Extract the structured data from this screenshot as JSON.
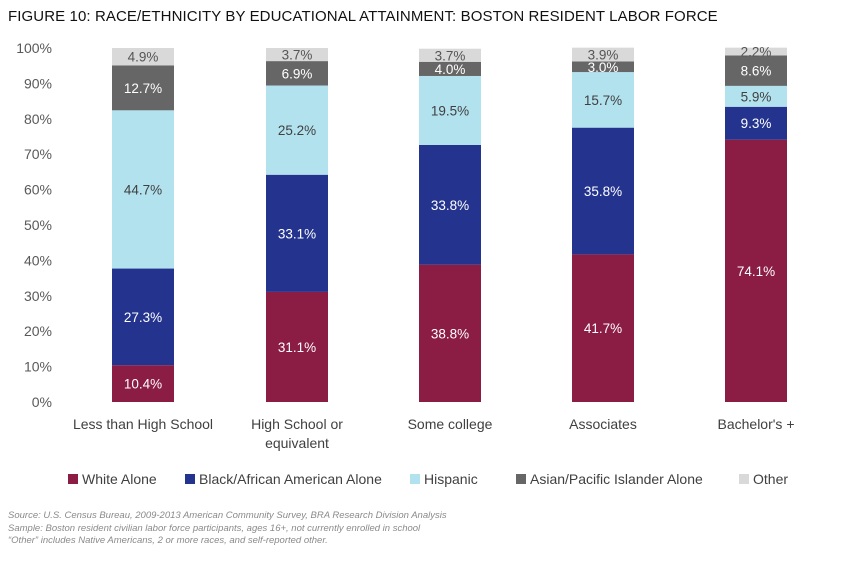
{
  "title": "FIGURE 10: RACE/ETHNICITY BY EDUCATIONAL ATTAINMENT: BOSTON RESIDENT LABOR FORCE",
  "chart_data": {
    "type": "bar",
    "stacked": true,
    "categories": [
      [
        "Less than High School"
      ],
      [
        "High School or",
        "equivalent"
      ],
      [
        "Some college"
      ],
      [
        "Associates"
      ],
      [
        "Bachelor's +"
      ]
    ],
    "series": [
      {
        "name": "White Alone",
        "color": "#8b1c44",
        "label_color": "#ffffff",
        "values": [
          10.4,
          31.1,
          38.8,
          41.7,
          74.1
        ],
        "labels": [
          "10.4%",
          "31.1%",
          "38.8%",
          "41.7%",
          "74.1%"
        ]
      },
      {
        "name": "Black/African American Alone",
        "color": "#24348e",
        "label_color": "#ffffff",
        "values": [
          27.3,
          33.1,
          33.8,
          35.8,
          9.3
        ],
        "labels": [
          "27.3%",
          "33.1%",
          "33.8%",
          "35.8%",
          "9.3%"
        ]
      },
      {
        "name": "Hispanic",
        "color": "#b3e2ef",
        "label_color": "#404040",
        "values": [
          44.7,
          25.2,
          19.5,
          15.7,
          5.9
        ],
        "labels": [
          "44.7%",
          "25.2%",
          "19.5%",
          "15.7%",
          "5.9%"
        ]
      },
      {
        "name": "Asian/Pacific Islander Alone",
        "color": "#666666",
        "label_color": "#ffffff",
        "values": [
          12.7,
          6.9,
          4.0,
          3.0,
          8.6
        ],
        "labels": [
          "12.7%",
          "6.9%",
          "4.0%",
          "3.0%",
          "8.6%"
        ]
      },
      {
        "name": "Other",
        "color": "#d9d9d9",
        "label_color": "#555555",
        "values": [
          4.9,
          3.7,
          3.7,
          3.9,
          2.2
        ],
        "labels": [
          "4.9%",
          "3.7%",
          "3.7%",
          "3.9%",
          "2.2%"
        ]
      }
    ],
    "ylim": [
      0,
      100
    ],
    "yticks": [
      "0%",
      "10%",
      "20%",
      "30%",
      "40%",
      "50%",
      "60%",
      "70%",
      "80%",
      "90%",
      "100%"
    ],
    "legend_position": "bottom",
    "grid": false
  },
  "footnotes": [
    "Source: U.S. Census Bureau, 2009-2013 American Community Survey, BRA Research Division Analysis",
    "Sample: Boston resident civilian labor force participants, ages 16+, not currently enrolled in school",
    "“Other” includes Native Americans, 2 or more races, and self-reported other."
  ]
}
